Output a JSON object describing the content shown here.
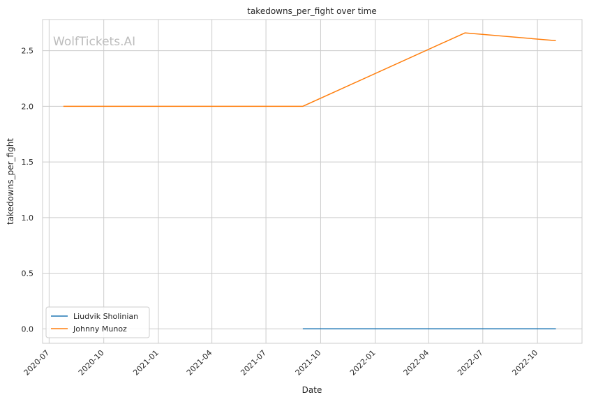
{
  "chart_data": {
    "type": "line",
    "title": "takedowns_per_fight over time",
    "xlabel": "Date",
    "ylabel": "takedowns_per_fight",
    "watermark": "WolfTickets.AI",
    "x_ticks": [
      "2020-07",
      "2020-10",
      "2021-01",
      "2021-04",
      "2021-07",
      "2021-10",
      "2022-01",
      "2022-04",
      "2022-07",
      "2022-10"
    ],
    "y_ticks": [
      "0.0",
      "0.5",
      "1.0",
      "1.5",
      "2.0",
      "2.5"
    ],
    "xlim": [
      "2020-06-20",
      "2022-12-15"
    ],
    "ylim": [
      -0.13,
      2.78
    ],
    "grid": true,
    "legend_position": "lower-left",
    "series": [
      {
        "name": "Liudvik Sholinian",
        "color": "#1f77b4",
        "points": [
          {
            "x": "2021-09-01",
            "y": 0.0
          },
          {
            "x": "2022-11-01",
            "y": 0.0
          }
        ]
      },
      {
        "name": "Johnny Munoz",
        "color": "#ff7f0e",
        "points": [
          {
            "x": "2020-07-25",
            "y": 2.0
          },
          {
            "x": "2021-09-01",
            "y": 2.0
          },
          {
            "x": "2022-06-01",
            "y": 2.66
          },
          {
            "x": "2022-11-01",
            "y": 2.59
          }
        ]
      }
    ]
  }
}
